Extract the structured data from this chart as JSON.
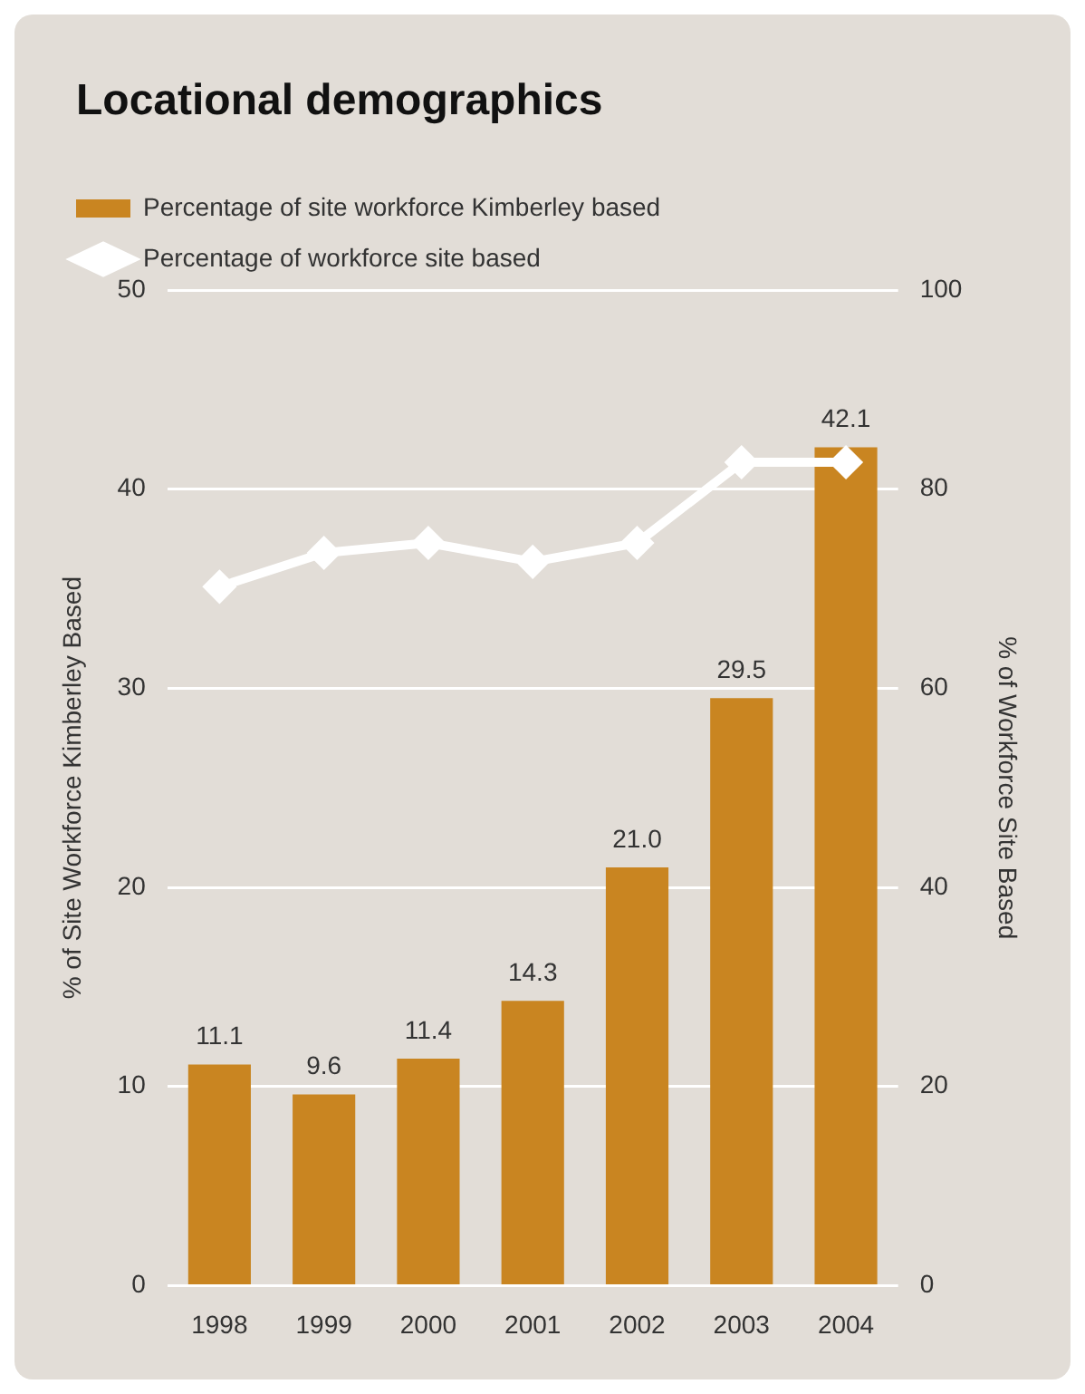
{
  "chart_data": {
    "type": "bar",
    "title": "Locational demographics",
    "categories": [
      "1998",
      "1999",
      "2000",
      "2001",
      "2002",
      "2003",
      "2004"
    ],
    "series": [
      {
        "name": "Percentage of site workforce Kimberley based",
        "color": "#c98521",
        "values": [
          11.1,
          9.6,
          11.4,
          14.3,
          21.0,
          29.5,
          42.1
        ],
        "value_labels": [
          "11.1",
          "9.6",
          "11.4",
          "14.3",
          "21.0",
          "29.5",
          "42.1"
        ]
      },
      {
        "name": "Percentage of workforce site based",
        "type": "line",
        "axis": "y2",
        "color": "#ffffff",
        "marker": "diamond",
        "line_style": "solid",
        "values": [
          70.2,
          73.6,
          74.6,
          72.7,
          74.6,
          82.7,
          82.7
        ]
      }
    ],
    "ylabel": "% of Site Workforce Kimberley Based",
    "y2label": "% of Workforce Site Based",
    "ylim": [
      0,
      50
    ],
    "yticks": [
      0,
      10,
      20,
      30,
      40,
      50
    ],
    "y2lim": [
      0,
      100
    ],
    "y2ticks": [
      0,
      20,
      40,
      60,
      80,
      100
    ],
    "grid": "y",
    "legend": "top left"
  }
}
